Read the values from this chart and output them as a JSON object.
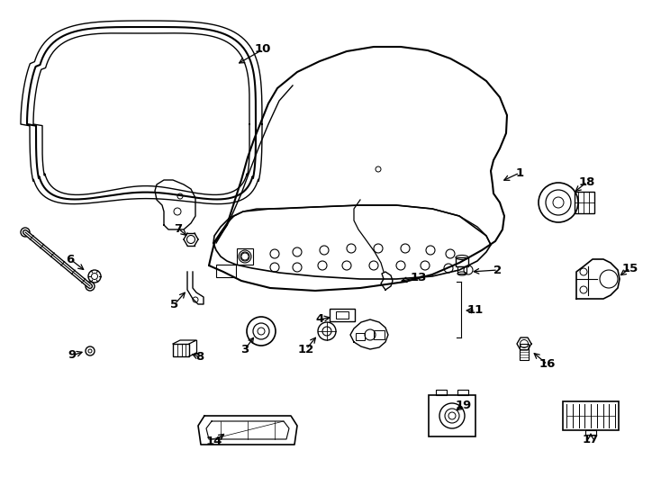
{
  "bg_color": "#ffffff",
  "line_color": "#000000",
  "lw": 1.2
}
